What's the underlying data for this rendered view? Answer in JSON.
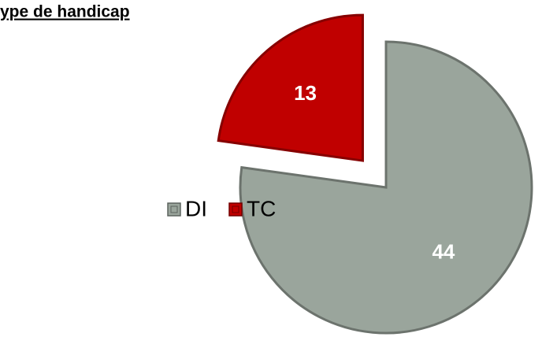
{
  "chart_data": {
    "type": "pie",
    "title": "ype de handicap",
    "categories": [
      "DI",
      "TC"
    ],
    "values": [
      44,
      13
    ],
    "colors": [
      "#9aa59c",
      "#c00000"
    ],
    "legend": "left"
  }
}
